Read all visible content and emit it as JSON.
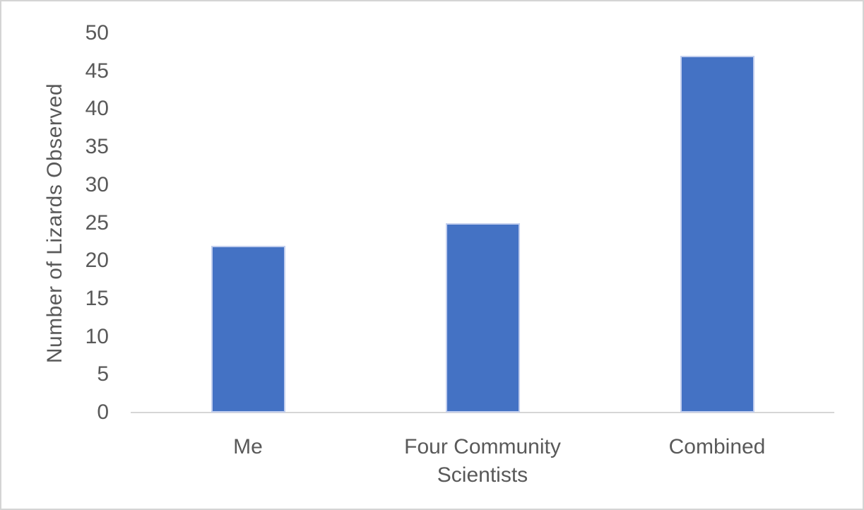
{
  "chart_data": {
    "type": "bar",
    "title": "",
    "categories": [
      "Me",
      "Four Community Scientists",
      "Combined"
    ],
    "values": [
      22,
      25,
      47
    ],
    "xlabel": "",
    "ylabel": "Number of Lizards Observed",
    "ylim": [
      0,
      50
    ],
    "yticks": [
      0,
      5,
      10,
      15,
      20,
      25,
      30,
      35,
      40,
      45,
      50
    ],
    "grid": false,
    "legend": "none",
    "bar_color": "#4472C4",
    "bar_edge_color": "#C3CFEE",
    "axis_line_color": "#D6D6D6",
    "text_color": "#595959",
    "frame_border_color": "#D4D4D4",
    "background_color": "#FFFFFF"
  }
}
